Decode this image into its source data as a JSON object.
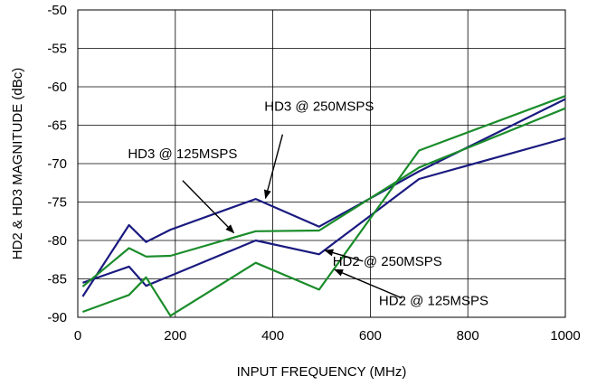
{
  "chart_data": {
    "type": "line",
    "xlabel": "INPUT FREQUENCY (MHz)",
    "ylabel": "HD2 & HD3 MAGNITUDE (dBc)",
    "xlim": [
      0,
      1000
    ],
    "ylim": [
      -90,
      -50
    ],
    "xticks": [
      0,
      200,
      400,
      600,
      800,
      1000
    ],
    "yticks": [
      -50,
      -55,
      -60,
      -65,
      -70,
      -75,
      -80,
      -85,
      -90
    ],
    "grid": true,
    "legend": "none",
    "series": [
      {
        "name": "HD3 @ 250MSPS",
        "color": "#1a1a80",
        "points": [
          [
            10,
            -87.3
          ],
          [
            105,
            -78
          ],
          [
            140,
            -80.2
          ],
          [
            190,
            -78.6
          ],
          [
            365,
            -74.6
          ],
          [
            495,
            -78.2
          ],
          [
            700,
            -71
          ],
          [
            1000,
            -61.6
          ]
        ]
      },
      {
        "name": "HD2 @ 250MSPS",
        "color": "#1a1a80",
        "points": [
          [
            10,
            -85.5
          ],
          [
            105,
            -83.4
          ],
          [
            140,
            -85.9
          ],
          [
            190,
            -84.6
          ],
          [
            365,
            -80
          ],
          [
            495,
            -81.8
          ],
          [
            700,
            -72
          ],
          [
            1000,
            -66.7
          ]
        ]
      },
      {
        "name": "HD3 @ 125MSPS",
        "color": "#1a8c2a",
        "points": [
          [
            10,
            -86
          ],
          [
            105,
            -81
          ],
          [
            140,
            -82.1
          ],
          [
            190,
            -82
          ],
          [
            365,
            -78.8
          ],
          [
            495,
            -78.7
          ],
          [
            700,
            -70.5
          ],
          [
            1000,
            -62.8
          ]
        ]
      },
      {
        "name": "HD2 @ 125MSPS",
        "color": "#1a8c2a",
        "points": [
          [
            10,
            -89.3
          ],
          [
            105,
            -87.1
          ],
          [
            140,
            -84.8
          ],
          [
            190,
            -89.8
          ],
          [
            365,
            -82.9
          ],
          [
            495,
            -86.4
          ],
          [
            700,
            -68.3
          ],
          [
            1000,
            -61.2
          ]
        ]
      }
    ],
    "annotations": [
      {
        "text": "HD3 @ 250MSPS",
        "series": 0,
        "text_at": [
          495,
          -62.5
        ],
        "arrow_from": [
          420,
          -66.2
        ],
        "arrow_to": [
          385,
          -74.5
        ]
      },
      {
        "text": "HD3 @ 125MSPS",
        "series": 2,
        "text_at": [
          215,
          -68.7
        ],
        "arrow_from": [
          215,
          -72.2
        ],
        "arrow_to": [
          320,
          -79
        ]
      },
      {
        "text": "HD2 @ 250MSPS",
        "series": 1,
        "text_at": [
          635,
          -82.7
        ],
        "arrow_from": [
          585,
          -82.7
        ],
        "arrow_to": [
          507,
          -81.3
        ]
      },
      {
        "text": "HD2 @ 125MSPS",
        "series": 3,
        "text_at": [
          730,
          -87.8
        ],
        "arrow_from": [
          665,
          -87.5
        ],
        "arrow_to": [
          527,
          -83.8
        ]
      }
    ]
  }
}
